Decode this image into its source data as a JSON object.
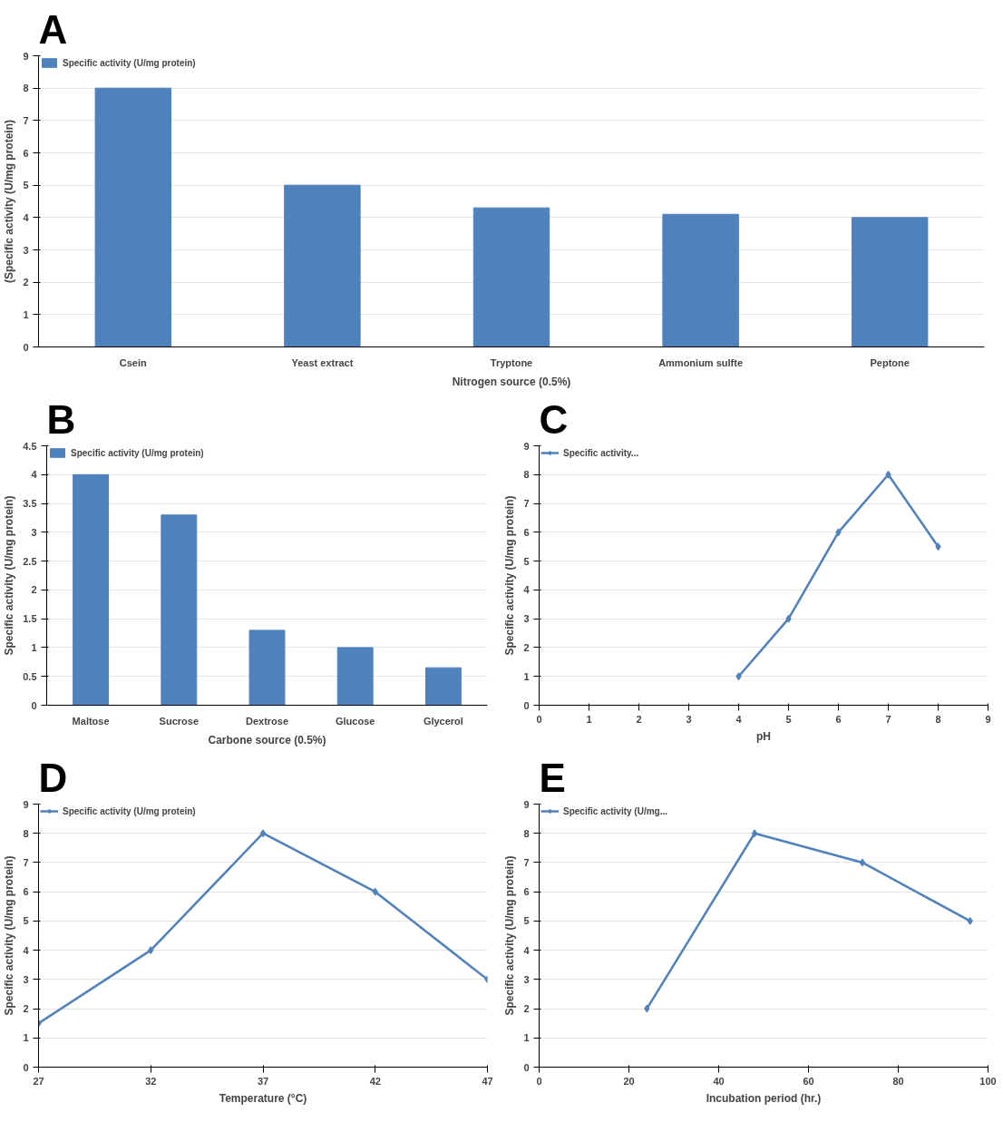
{
  "chart_data": [
    {
      "type": "bar",
      "annotations": [
        "A"
      ],
      "categories": [
        "Csein",
        "Yeast extract",
        "Tryptone",
        "Ammonium sulfte",
        "Peptone"
      ],
      "series": [
        {
          "name": "Specific activity (U/mg protein)",
          "color": "#4f81bd",
          "values": [
            8,
            5,
            4.3,
            4.1,
            4
          ]
        }
      ],
      "ylim": [
        0,
        9
      ],
      "yticks": [
        0,
        1,
        2,
        3,
        4,
        5,
        6,
        7,
        8,
        9
      ],
      "xlabel": "Nitrogen source (0.5%)",
      "ylabel": "(Specific activity (U/mg protein)",
      "legend": "top left",
      "grid": "y"
    },
    {
      "type": "bar",
      "annotations": [
        "B"
      ],
      "categories": [
        "Maltose",
        "Sucrose",
        "Dextrose",
        "Glucose",
        "Glycerol"
      ],
      "series": [
        {
          "name": "Specific activity (U/mg protein)",
          "color": "#4f81bd",
          "values": [
            4,
            3.3,
            1.3,
            1,
            0.65
          ]
        }
      ],
      "ylim": [
        0,
        4.5
      ],
      "yticks": [
        0,
        0.5,
        1,
        1.5,
        2,
        2.5,
        3,
        3.5,
        4,
        4.5
      ],
      "xlabel": "Carbone source (0.5%)",
      "ylabel": "Specific activity (U/mg protein)",
      "legend": "top left",
      "grid": "y"
    },
    {
      "type": "line",
      "annotations": [
        "C"
      ],
      "x": [
        4,
        5,
        6,
        7,
        8
      ],
      "series": [
        {
          "name": "Specific activity...",
          "color": "#4f81bd",
          "values": [
            1,
            3,
            6,
            8,
            5.5
          ]
        }
      ],
      "xlim": [
        0,
        9
      ],
      "xticks": [
        0,
        1,
        2,
        3,
        4,
        5,
        6,
        7,
        8,
        9
      ],
      "ylim": [
        0,
        9
      ],
      "yticks": [
        0,
        1,
        2,
        3,
        4,
        5,
        6,
        7,
        8,
        9
      ],
      "xlabel": "pH",
      "ylabel": "Specific activity (U/mg protein)",
      "legend": "top left",
      "grid": "y",
      "marker": "diamond",
      "line_style": "solid"
    },
    {
      "type": "line",
      "annotations": [
        "D"
      ],
      "x": [
        27,
        32,
        37,
        42,
        47
      ],
      "series": [
        {
          "name": "Specific activity (U/mg protein)",
          "color": "#4f81bd",
          "values": [
            1.5,
            4,
            8,
            6,
            3
          ]
        }
      ],
      "xlim": [
        27,
        47
      ],
      "xticks": [
        27,
        32,
        37,
        42,
        47
      ],
      "ylim": [
        0,
        9
      ],
      "yticks": [
        0,
        1,
        2,
        3,
        4,
        5,
        6,
        7,
        8,
        9
      ],
      "xlabel": "Temperature (°C)",
      "ylabel": "Specific activity (U/mg protein)",
      "legend": "top left",
      "grid": "y",
      "marker": "diamond",
      "line_style": "solid"
    },
    {
      "type": "line",
      "annotations": [
        "E"
      ],
      "x": [
        24,
        48,
        72,
        96
      ],
      "series": [
        {
          "name": "Specific activity (U/mg...",
          "color": "#4f81bd",
          "values": [
            2,
            8,
            7,
            5
          ]
        }
      ],
      "xlim": [
        0,
        100
      ],
      "xticks": [
        0,
        20,
        40,
        60,
        80,
        100
      ],
      "ylim": [
        0,
        9
      ],
      "yticks": [
        0,
        1,
        2,
        3,
        4,
        5,
        6,
        7,
        8,
        9
      ],
      "xlabel": "Incubation period (hr.)",
      "ylabel": "Specific activity (U/mg protein)",
      "legend": "top left",
      "grid": "y",
      "marker": "diamond",
      "line_style": "solid"
    }
  ]
}
